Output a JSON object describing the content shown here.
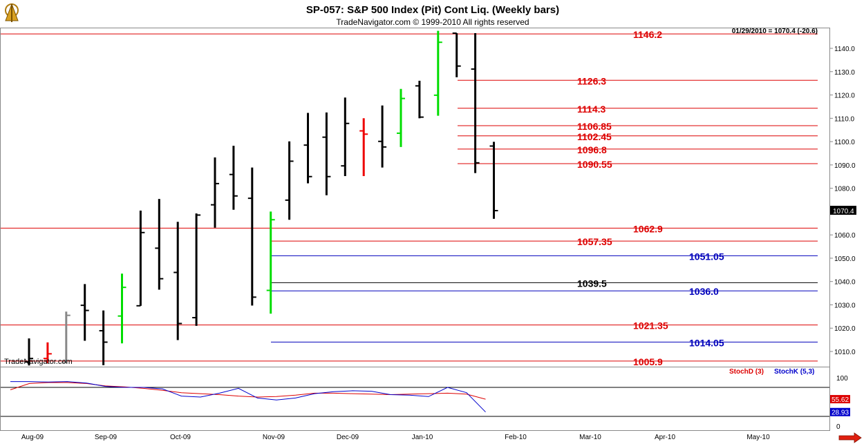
{
  "header": {
    "title": "SP-057:  S&P 500 Index (Pit) Cont Liq.  (Weekly bars)",
    "subtitle": "TradeNavigator.com © 1999-2010 All rights reserved",
    "info": "01/29/2010 = 1070.4 (-20.6)",
    "watermark": "TradeNavigator.com",
    "logo_icon": "sextant-logo-icon",
    "scroll_icon": "arrow-right-icon"
  },
  "chart_data": [
    {
      "type": "ohlc",
      "ylim": [
        1002,
        1148
      ],
      "yticks": [
        "1140.0",
        "1130.0",
        "1120.0",
        "1110.0",
        "1100.0",
        "1090.0",
        "1080.0",
        "1070.0",
        "1060.0",
        "1050.0",
        "1040.0",
        "1030.0",
        "1020.0",
        "1010.0"
      ],
      "last_price_label": "1070.4",
      "colors": {
        "up": "#000000",
        "signal_green": "#00dd00",
        "signal_red": "#ee0000",
        "muted": "#888888"
      },
      "bars": [
        {
          "high": 1015.6,
          "low": 1004.0,
          "open": 1005.5,
          "close": 1007.0,
          "color": "#000000"
        },
        {
          "high": 1013.9,
          "low": 1005.0,
          "open": 1007.0,
          "close": 1009.0,
          "color": "#ee0000"
        },
        {
          "high": 1027.1,
          "low": 1005.0,
          "open": 1005.5,
          "close": 1025.5,
          "color": "#888888"
        },
        {
          "high": 1038.9,
          "low": 1014.6,
          "open": 1029.8,
          "close": 1027.6,
          "color": "#000000"
        },
        {
          "high": 1027.6,
          "low": 1004.1,
          "open": 1018.9,
          "close": 1014.0,
          "color": "#000000"
        },
        {
          "high": 1043.4,
          "low": 1013.5,
          "open": 1025.2,
          "close": 1037.5,
          "color": "#00dd00"
        },
        {
          "high": 1070.4,
          "low": 1029.6,
          "open": 1029.6,
          "close": 1061.0,
          "color": "#000000"
        },
        {
          "high": 1075.4,
          "low": 1036.5,
          "open": 1054.3,
          "close": 1041.2,
          "color": "#000000"
        },
        {
          "high": 1065.6,
          "low": 1014.9,
          "open": 1043.9,
          "close": 1022.0,
          "color": "#000000"
        },
        {
          "high": 1069.2,
          "low": 1021.0,
          "open": 1024.5,
          "close": 1068.5,
          "color": "#000000"
        },
        {
          "high": 1093.2,
          "low": 1063.1,
          "open": 1072.9,
          "close": 1082.0,
          "color": "#000000"
        },
        {
          "high": 1098.2,
          "low": 1070.8,
          "open": 1085.9,
          "close": 1076.7,
          "color": "#000000"
        },
        {
          "high": 1088.9,
          "low": 1029.7,
          "open": 1075.7,
          "close": 1033.3,
          "color": "#000000"
        },
        {
          "high": 1070.0,
          "low": 1026.2,
          "open": 1036.2,
          "close": 1066.5,
          "color": "#00dd00"
        },
        {
          "high": 1100.1,
          "low": 1066.5,
          "open": 1074.9,
          "close": 1091.6,
          "color": "#000000"
        },
        {
          "high": 1112.3,
          "low": 1082.1,
          "open": 1098.5,
          "close": 1085.0,
          "color": "#000000"
        },
        {
          "high": 1112.5,
          "low": 1077.0,
          "open": 1101.9,
          "close": 1085.0,
          "color": "#000000"
        },
        {
          "high": 1118.9,
          "low": 1085.2,
          "open": 1089.6,
          "close": 1107.8,
          "color": "#000000"
        },
        {
          "high": 1110.0,
          "low": 1085.2,
          "open": 1104.6,
          "close": 1103.2,
          "color": "#ee0000"
        },
        {
          "high": 1115.5,
          "low": 1088.9,
          "open": 1100.1,
          "close": 1097.7,
          "color": "#000000"
        },
        {
          "high": 1122.6,
          "low": 1097.7,
          "open": 1103.6,
          "close": 1118.5,
          "color": "#00dd00"
        },
        {
          "high": 1126.1,
          "low": 1110.0,
          "open": 1123.9,
          "close": 1110.5,
          "color": "#000000"
        },
        {
          "high": 1147.5,
          "low": 1111.1,
          "open": 1119.9,
          "close": 1142.6,
          "color": "#00dd00"
        },
        {
          "high": 1146.5,
          "low": 1127.6,
          "open": 1146.5,
          "close": 1132.4,
          "color": "#000000"
        },
        {
          "high": 1146.5,
          "low": 1086.5,
          "open": 1131.1,
          "close": 1090.9,
          "color": "#000000"
        },
        {
          "high": 1099.9,
          "low": 1066.9,
          "open": 1098.1,
          "close": 1070.4,
          "color": "#000000"
        }
      ],
      "levels": [
        {
          "label": "1146.2",
          "value": 1146.2,
          "color": "#dd0000",
          "span": "full",
          "label_at": "col3"
        },
        {
          "label": "1126.3",
          "value": 1126.3,
          "color": "#dd0000",
          "span": "late",
          "label_at": "col2"
        },
        {
          "label": "1114.3",
          "value": 1114.3,
          "color": "#dd0000",
          "span": "late",
          "label_at": "col2"
        },
        {
          "label": "1106.85",
          "value": 1106.85,
          "color": "#dd0000",
          "span": "late",
          "label_at": "col2"
        },
        {
          "label": "1102.45",
          "value": 1102.45,
          "color": "#dd0000",
          "span": "late",
          "label_at": "col2"
        },
        {
          "label": "1096.8",
          "value": 1096.8,
          "color": "#dd0000",
          "span": "late",
          "label_at": "col2"
        },
        {
          "label": "1090.55",
          "value": 1090.55,
          "color": "#dd0000",
          "span": "late",
          "label_at": "col2"
        },
        {
          "label": "1062.9",
          "value": 1062.9,
          "color": "#dd0000",
          "span": "full",
          "label_at": "col3"
        },
        {
          "label": "1057.35",
          "value": 1057.35,
          "color": "#dd0000",
          "span": "mid",
          "label_at": "col2"
        },
        {
          "label": "1051.05",
          "value": 1051.05,
          "color": "#0000bb",
          "span": "mid",
          "label_at": "col4"
        },
        {
          "label": "1039.5",
          "value": 1039.5,
          "color": "#000000",
          "span": "mid",
          "label_at": "col2"
        },
        {
          "label": "1036.0",
          "value": 1036.0,
          "color": "#0000bb",
          "span": "mid",
          "label_at": "col4"
        },
        {
          "label": "1021.35",
          "value": 1021.35,
          "color": "#dd0000",
          "span": "full",
          "label_at": "col3"
        },
        {
          "label": "1014.05",
          "value": 1014.05,
          "color": "#0000bb",
          "span": "mid",
          "label_at": "col4"
        },
        {
          "label": "1005.9",
          "value": 1005.9,
          "color": "#dd0000",
          "span": "full",
          "label_at": "col3"
        }
      ],
      "x_labels": [
        "Aug-09",
        "Sep-09",
        "Oct-09",
        "Nov-09",
        "Dec-09",
        "Jan-10",
        "Feb-10",
        "Mar-10",
        "Apr-10",
        "May-10"
      ]
    },
    {
      "type": "line",
      "ylim": [
        0,
        100
      ],
      "yticks": [
        "100",
        "0"
      ],
      "reference_lines": [
        80,
        20
      ],
      "legend": [
        {
          "name": "StochD (3)",
          "color": "#dd0000"
        },
        {
          "name": "StochK (5,3)",
          "color": "#0000cc"
        }
      ],
      "value_labels": [
        {
          "text": "55.62",
          "value": 55.62,
          "color": "#dd0000"
        },
        {
          "text": "28.93",
          "value": 28.93,
          "color": "#0000cc"
        }
      ],
      "series": [
        {
          "name": "StochD (3)",
          "color": "#dd0000",
          "values": [
            75,
            88,
            90,
            90,
            88,
            83,
            81,
            78,
            74,
            69,
            67,
            65,
            62,
            60,
            61,
            64,
            68,
            68,
            67,
            66,
            65,
            66,
            67,
            68,
            66,
            55.62
          ]
        },
        {
          "name": "StochK (5,3)",
          "color": "#0000cc",
          "values": [
            92,
            92,
            91,
            92,
            89,
            82,
            80,
            80,
            77,
            62,
            60,
            68,
            78,
            58,
            54,
            58,
            67,
            71,
            73,
            72,
            65,
            64,
            61,
            80,
            69,
            28.93
          ]
        }
      ]
    }
  ]
}
